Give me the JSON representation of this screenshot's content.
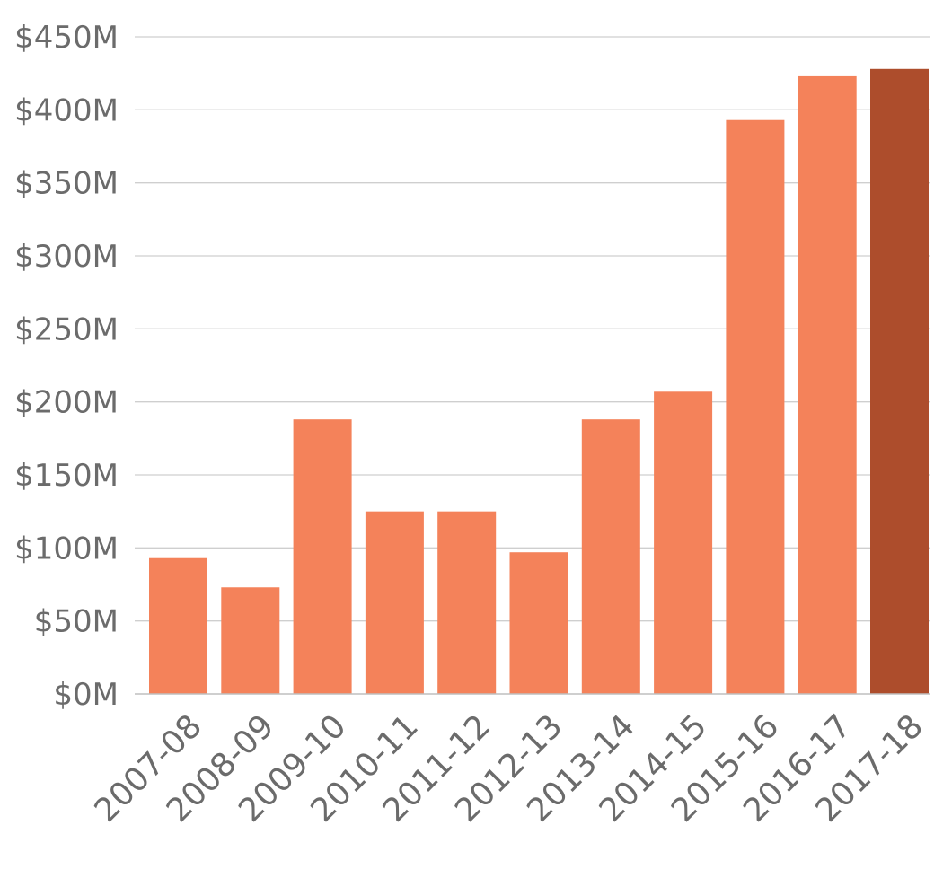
{
  "chart_data": {
    "type": "bar",
    "title": "",
    "xlabel": "",
    "ylabel": "",
    "categories": [
      "2007-08",
      "2008-09",
      "2009-10",
      "2010-11",
      "2011-12",
      "2012-13",
      "2013-14",
      "2014-15",
      "2015-16",
      "2016-17",
      "2017-18"
    ],
    "values": [
      93,
      73,
      188,
      125,
      125,
      97,
      188,
      207,
      393,
      423,
      428
    ],
    "ylim": [
      0,
      450
    ],
    "yticks": [
      0,
      50,
      100,
      150,
      200,
      250,
      300,
      350,
      400,
      450
    ],
    "ytick_labels": [
      "$0M",
      "$50M",
      "$100M",
      "$150M",
      "$200M",
      "$250M",
      "$300M",
      "$350M",
      "$400M",
      "$450M"
    ],
    "grid": true,
    "legend": "none",
    "colors": {
      "bar": "#f4825a",
      "highlight_bar": "#ad4d2c",
      "highlight_category": "2017-18",
      "grid": "#cfcfcf",
      "text": "#6b6b6b"
    }
  }
}
